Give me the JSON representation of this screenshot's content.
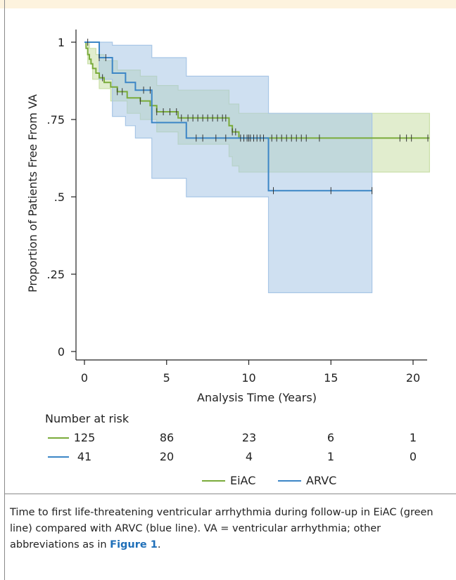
{
  "chart_data": {
    "type": "line",
    "subtype": "kaplan-meier",
    "xlabel": "Analysis Time (Years)",
    "ylabel": "Proportion of Patients Free From VA",
    "xlim": [
      0,
      21
    ],
    "ylim": [
      0,
      1
    ],
    "x_ticks": [
      0,
      5,
      10,
      15,
      20
    ],
    "x_tick_labels": [
      "0",
      "5",
      "10",
      "15",
      "20"
    ],
    "y_ticks": [
      0,
      0.25,
      0.5,
      0.75,
      1
    ],
    "y_tick_labels": [
      "0",
      ".25",
      ".5",
      ".75",
      "1"
    ],
    "grid": false,
    "legend_position": "bottom-center",
    "series": [
      {
        "name": "EiAC",
        "color": "#7aab3a",
        "band_color": "#c9dfa6",
        "steps": [
          [
            0,
            1
          ],
          [
            0.1,
            0.98
          ],
          [
            0.2,
            0.96
          ],
          [
            0.3,
            0.945
          ],
          [
            0.4,
            0.93
          ],
          [
            0.5,
            0.915
          ],
          [
            0.7,
            0.9
          ],
          [
            0.9,
            0.885
          ],
          [
            1.2,
            0.87
          ],
          [
            1.6,
            0.855
          ],
          [
            2.0,
            0.84
          ],
          [
            2.6,
            0.82
          ],
          [
            3.4,
            0.81
          ],
          [
            4.0,
            0.795
          ],
          [
            4.4,
            0.775
          ],
          [
            5.7,
            0.755
          ],
          [
            8.8,
            0.73
          ],
          [
            9.0,
            0.71
          ],
          [
            9.4,
            0.69
          ]
        ],
        "end_x": 21,
        "ci_upper": [
          [
            0,
            1
          ],
          [
            0.3,
            0.98
          ],
          [
            0.7,
            0.96
          ],
          [
            1.2,
            0.94
          ],
          [
            2.0,
            0.91
          ],
          [
            3.4,
            0.89
          ],
          [
            4.4,
            0.86
          ],
          [
            5.7,
            0.845
          ],
          [
            8.8,
            0.8
          ],
          [
            9.4,
            0.77
          ]
        ],
        "ci_lower": [
          [
            0,
            1
          ],
          [
            0.2,
            0.93
          ],
          [
            0.5,
            0.88
          ],
          [
            0.9,
            0.85
          ],
          [
            1.6,
            0.81
          ],
          [
            2.6,
            0.77
          ],
          [
            3.4,
            0.75
          ],
          [
            4.4,
            0.71
          ],
          [
            5.7,
            0.67
          ],
          [
            8.8,
            0.63
          ],
          [
            9.0,
            0.6
          ],
          [
            9.4,
            0.58
          ]
        ],
        "censor_x": [
          1.1,
          2.0,
          2.3,
          3.4,
          4.4,
          4.8,
          5.2,
          5.6,
          5.9,
          6.3,
          6.6,
          6.9,
          7.2,
          7.5,
          7.8,
          8.1,
          8.4,
          8.6,
          9.0,
          9.2,
          9.5,
          9.7,
          9.9,
          10.1,
          10.3,
          10.5,
          10.7,
          10.9,
          11.4,
          11.7,
          12.0,
          12.3,
          12.6,
          12.9,
          13.2,
          13.5,
          14.3,
          19.2,
          19.6,
          19.9,
          20.9
        ]
      },
      {
        "name": "ARVC",
        "color": "#3c86c6",
        "band_color": "#a8c6e6",
        "steps": [
          [
            0,
            1
          ],
          [
            0.9,
            0.95
          ],
          [
            1.7,
            0.9
          ],
          [
            2.5,
            0.87
          ],
          [
            3.1,
            0.845
          ],
          [
            4.1,
            0.74
          ],
          [
            6.2,
            0.69
          ],
          [
            11.2,
            0.52
          ]
        ],
        "end_x": 17.5,
        "ci_upper": [
          [
            0,
            1
          ],
          [
            1.7,
            0.99
          ],
          [
            4.1,
            0.95
          ],
          [
            6.2,
            0.89
          ],
          [
            11.2,
            0.82
          ],
          [
            11.2,
            0.77
          ]
        ],
        "ci_lower": [
          [
            0,
            1
          ],
          [
            0.9,
            0.88
          ],
          [
            1.7,
            0.76
          ],
          [
            2.5,
            0.73
          ],
          [
            3.1,
            0.69
          ],
          [
            4.1,
            0.56
          ],
          [
            6.2,
            0.5
          ],
          [
            11.2,
            0.19
          ]
        ],
        "censor_x": [
          0.2,
          0.9,
          1.3,
          3.6,
          4.0,
          6.8,
          7.2,
          8.0,
          8.6,
          10.0,
          11.5,
          15.0,
          17.5
        ]
      }
    ],
    "risk_table": {
      "title": "Number at risk",
      "times": [
        0,
        5,
        10,
        15,
        20
      ],
      "rows": [
        {
          "name": "EiAC",
          "values": [
            "125",
            "86",
            "23",
            "6",
            "1"
          ]
        },
        {
          "name": "ARVC",
          "values": [
            "41",
            "20",
            "4",
            "1",
            "0"
          ]
        }
      ]
    }
  },
  "caption": {
    "text": "Time to first life-threatening ventricular arrhythmia during follow-up in EiAC (green line) compared with ARVC (blue line). VA = ventricular arrhythmia; other abbreviations as in ",
    "link": "Figure 1",
    "end": "."
  }
}
